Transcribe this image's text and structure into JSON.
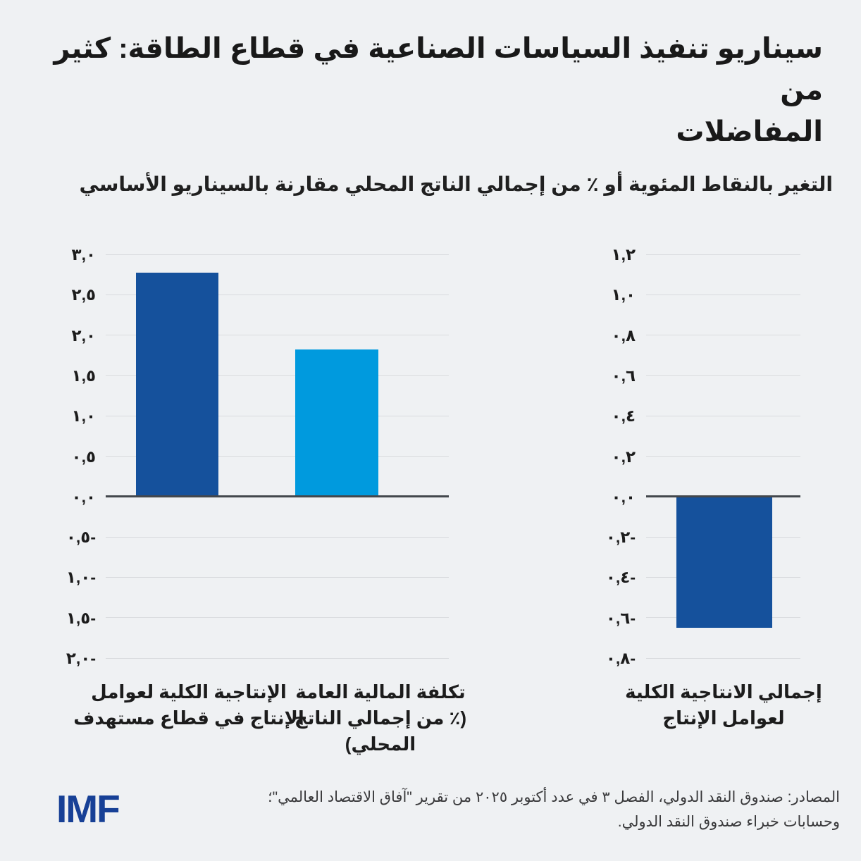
{
  "title": {
    "line1": "سيناريو تنفيذ السياسات الصناعية في قطاع الطاقة: كثير من",
    "line2": "المفاضلات"
  },
  "subtitle": "التغير بالنقاط المئوية أو ٪ من إجمالي الناتج المحلي مقارنة بالسيناريو الأساسي",
  "colors": {
    "dark_blue": "#15519c",
    "light_blue": "#009ade",
    "gridline": "#d9dbde",
    "zero_line": "#43474c",
    "text": "#1c1c1c",
    "imf_blue": "#174096",
    "background": "#eff1f3"
  },
  "chart_data": [
    {
      "type": "bar",
      "panel": "left",
      "categories": [
        [
          "الإنتاجية الكلية لعوامل",
          "الإنتاج في قطاع مستهدف"
        ],
        [
          "تكلفة المالية العامة",
          "(٪ من إجمالي الناتج المحلي)"
        ]
      ],
      "values": [
        2.77,
        1.82
      ],
      "bar_colors": [
        "#15519c",
        "#009ade"
      ],
      "ymin": -2.0,
      "ymax": 3.0,
      "ytick_step": 0.5,
      "ytick_labels": [
        "٣,٠",
        "٢,٥",
        "٢,٠",
        "١,٥",
        "١,٠",
        "٠,٥",
        "٠,٠",
        "٠,٥-",
        "١,٠-",
        "١,٥-",
        "٢,٠-"
      ],
      "grid": true,
      "legend": null
    },
    {
      "type": "bar",
      "panel": "right",
      "categories": [
        [
          "إجمالي الانتاجية الكلية",
          "لعوامل الإنتاج"
        ]
      ],
      "values": [
        -0.65
      ],
      "bar_colors": [
        "#15519c"
      ],
      "ymin": -0.8,
      "ymax": 1.2,
      "ytick_step": 0.2,
      "ytick_labels": [
        "١,٢",
        "١,٠",
        "٠,٨",
        "٠,٦",
        "٠,٤",
        "٠,٢",
        "٠,٠",
        "٠,٢-",
        "٠,٤-",
        "٠,٦-",
        "٠,٨-"
      ],
      "grid": true,
      "legend": null
    }
  ],
  "footer": {
    "logo": "IMF",
    "source_line1": "المصادر: صندوق النقد الدولي، الفصل ٣ في عدد أكتوبر ٢٠٢٥ من تقرير \"آفاق الاقتصاد العالمي\"؛",
    "source_line2": "وحسابات خبراء صندوق النقد الدولي."
  }
}
